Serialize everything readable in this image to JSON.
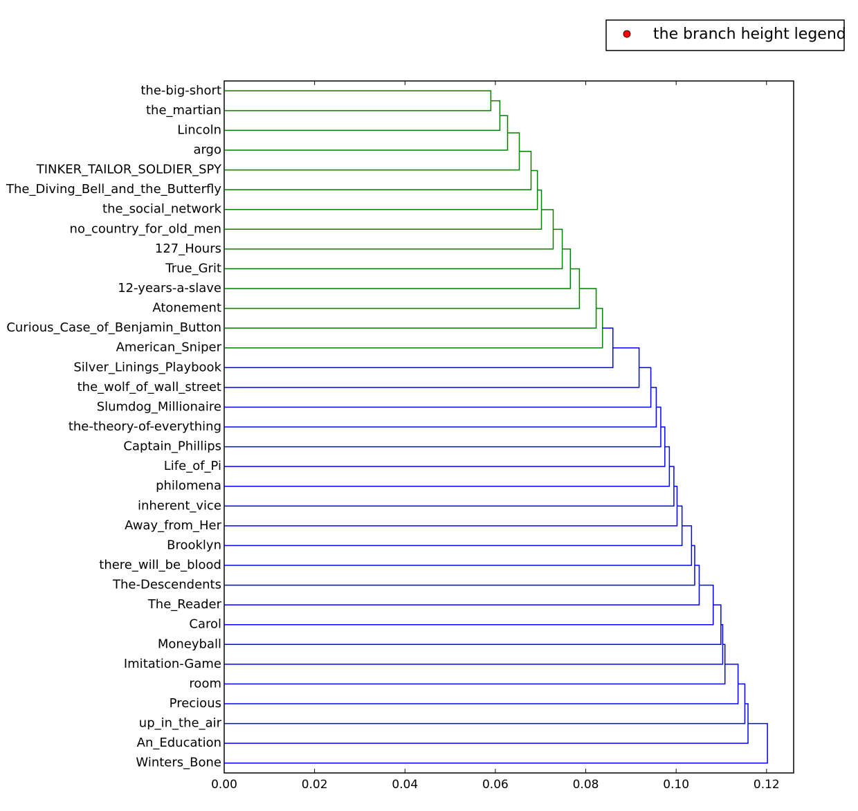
{
  "chart_data": {
    "type": "dendrogram",
    "orientation": "left",
    "leaves": [
      "the-big-short",
      "the_martian",
      "Lincoln",
      "argo",
      "TINKER_TAILOR_SOLDIER_SPY",
      "The_Diving_Bell_and_the_Butterfly",
      "the_social_network",
      "no_country_for_old_men",
      "127_Hours",
      "True_Grit",
      "12-years-a-slave",
      "Atonement",
      "Curious_Case_of_Benjamin_Button",
      "American_Sniper",
      "Silver_Linings_Playbook",
      "the_wolf_of_wall_street",
      "Slumdog_Millionaire",
      "the-theory-of-everything",
      "Captain_Phillips",
      "Life_of_Pi",
      "philomena",
      "inherent_vice",
      "Away_from_Her",
      "Brooklyn",
      "there_will_be_blood",
      "The-Descendents",
      "The_Reader",
      "Carol",
      "Moneyball",
      "Imitation-Game",
      "room",
      "Precious",
      "up_in_the_air",
      "An_Education",
      "Winters_Bone"
    ],
    "heights": [
      0.059,
      0.061,
      0.0627,
      0.0653,
      0.0679,
      0.0693,
      0.0702,
      0.0728,
      0.0748,
      0.0766,
      0.0786,
      0.0823,
      0.0837,
      0.086,
      0.0918,
      0.0944,
      0.0956,
      0.0966,
      0.0975,
      0.0985,
      0.0995,
      0.1002,
      0.1013,
      0.1034,
      0.1041,
      0.1051,
      0.1082,
      0.1099,
      0.1103,
      0.1108,
      0.1137,
      0.1152,
      0.1159,
      0.1202
    ],
    "link_colors": [
      "#008000",
      "#008000",
      "#008000",
      "#008000",
      "#008000",
      "#008000",
      "#008000",
      "#008000",
      "#008000",
      "#008000",
      "#008000",
      "#008000",
      "#008000",
      "#0000ff",
      "#0000ff",
      "#0000ff",
      "#0000ff",
      "#0000ff",
      "#0000ff",
      "#0000ff",
      "#0000ff",
      "#0000ff",
      "#0000ff",
      "#0000ff",
      "#0000ff",
      "#0000ff",
      "#0000ff",
      "#0000ff",
      "#0000ff",
      "#0000ff",
      "#0000ff",
      "#0000ff",
      "#0000ff",
      "#0000ff"
    ],
    "xlim": [
      0,
      0.126
    ],
    "xticks": [
      {
        "value": 0,
        "label": "0.00"
      },
      {
        "value": 0.02,
        "label": "0.02"
      },
      {
        "value": 0.04,
        "label": "0.04"
      },
      {
        "value": 0.06,
        "label": "0.06"
      },
      {
        "value": 0.08,
        "label": "0.08"
      },
      {
        "value": 0.1,
        "label": "0.10"
      },
      {
        "value": 0.12,
        "label": "0.12"
      }
    ],
    "legend": {
      "label": "the branch height legend",
      "color": "#ff0000",
      "position": "upper right"
    }
  }
}
